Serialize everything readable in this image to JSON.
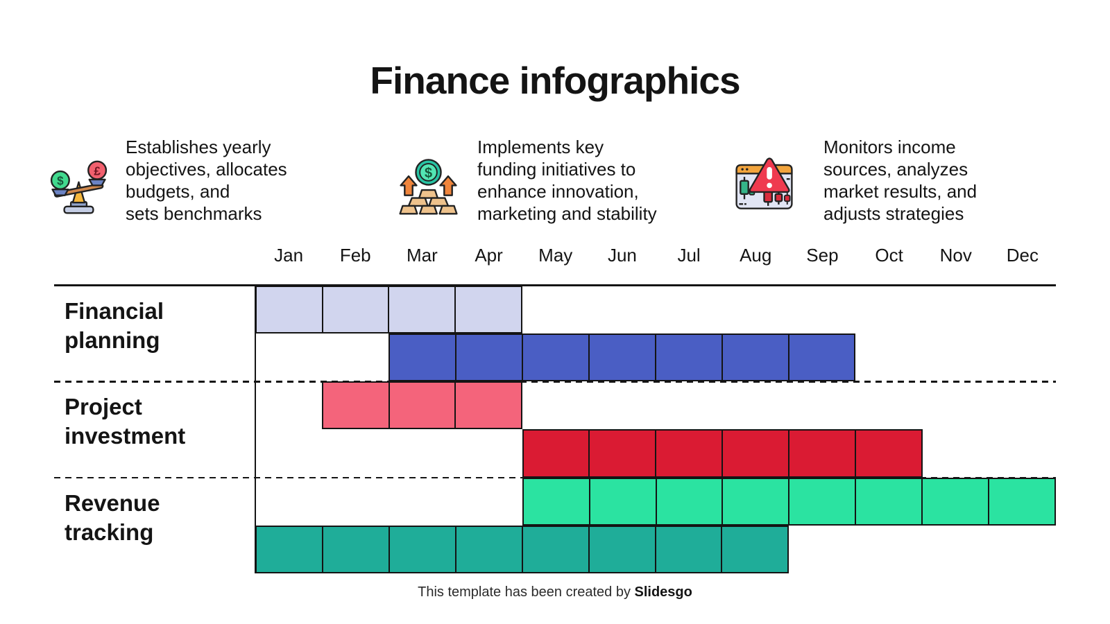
{
  "title": "Finance infographics",
  "features": [
    {
      "icon": "balance-scale-icon",
      "text": "Establishes yearly\nobjectives, allocates\nbudgets, and\nsets benchmarks"
    },
    {
      "icon": "gold-bars-icon",
      "text": "Implements key\nfunding initiatives to\nenhance innovation,\nmarketing and stability"
    },
    {
      "icon": "market-alert-icon",
      "text": "Monitors income\nsources, analyzes\nmarket results, and\nadjusts strategies"
    }
  ],
  "chart_data": {
    "type": "gantt",
    "title": "Finance infographics",
    "months": [
      "Jan",
      "Feb",
      "Mar",
      "Apr",
      "May",
      "Jun",
      "Jul",
      "Aug",
      "Sep",
      "Oct",
      "Nov",
      "Dec"
    ],
    "grid": "month columns with black cell borders, dashed row separators",
    "legend_position": "none",
    "rows": [
      {
        "label": "Financial\nplanning",
        "bars": [
          {
            "name": "financial-planning-phase-1",
            "start": "Jan",
            "end": "Apr",
            "duration_months": 4,
            "slot": "top",
            "color": "#d1d5ee"
          },
          {
            "name": "financial-planning-phase-2",
            "start": "Mar",
            "end": "Sep",
            "duration_months": 7,
            "slot": "bottom",
            "color": "#4a5ec4"
          }
        ]
      },
      {
        "label": "Project\ninvestment",
        "bars": [
          {
            "name": "project-investment-phase-1",
            "start": "Feb",
            "end": "Apr",
            "duration_months": 3,
            "slot": "top",
            "color": "#f4647b"
          },
          {
            "name": "project-investment-phase-2",
            "start": "May",
            "end": "Oct",
            "duration_months": 6,
            "slot": "bottom",
            "color": "#da1b33"
          }
        ]
      },
      {
        "label": "Revenue\ntracking",
        "bars": [
          {
            "name": "revenue-tracking-phase-1",
            "start": "May",
            "end": "Dec",
            "duration_months": 8,
            "slot": "top",
            "color": "#2be3a1"
          },
          {
            "name": "revenue-tracking-phase-2",
            "start": "Jan",
            "end": "Aug",
            "duration_months": 8,
            "slot": "bottom",
            "color": "#1fad99"
          }
        ]
      }
    ]
  },
  "footer": {
    "text": "This template has been created by ",
    "brand": "Slidesgo"
  }
}
